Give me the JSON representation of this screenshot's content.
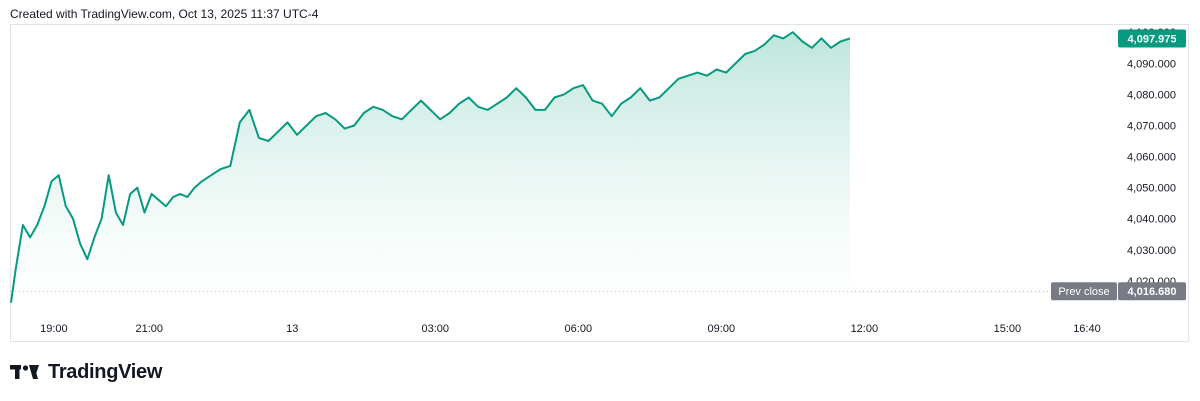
{
  "header": {
    "credit": "Created with TradingView.com, Oct 13, 2025 11:37 UTC-4"
  },
  "footer": {
    "brand": "TradingView"
  },
  "colors": {
    "line": "#089981",
    "fill_top": "#b9e4d9",
    "fill_bottom": "#ffffff",
    "last_badge": "#089981",
    "prev_badge": "#787b86",
    "prev_line": "#b2b5be"
  },
  "chart_data": {
    "type": "area",
    "ylim": [
      4010,
      4102
    ],
    "y_ticks": [
      {
        "value": 4020,
        "label": "4,020.000"
      },
      {
        "value": 4030,
        "label": "4,030.000"
      },
      {
        "value": 4040,
        "label": "4,040.000"
      },
      {
        "value": 4050,
        "label": "4,050.000"
      },
      {
        "value": 4060,
        "label": "4,060.000"
      },
      {
        "value": 4070,
        "label": "4,070.000"
      },
      {
        "value": 4080,
        "label": "4,080.000"
      },
      {
        "value": 4090,
        "label": "4,090.000"
      },
      {
        "value": 4100,
        "label": "4,100.000"
      }
    ],
    "x_ticks": [
      {
        "value": 19.0,
        "label": "19:00"
      },
      {
        "value": 21.0,
        "label": "21:00"
      },
      {
        "value": 24.0,
        "label": "13"
      },
      {
        "value": 27.0,
        "label": "03:00"
      },
      {
        "value": 30.0,
        "label": "06:00"
      },
      {
        "value": 33.0,
        "label": "09:00"
      },
      {
        "value": 36.0,
        "label": "12:00"
      },
      {
        "value": 39.0,
        "label": "15:00"
      },
      {
        "value": 40.67,
        "label": "16:40"
      }
    ],
    "xlim": [
      18.1,
      41.3
    ],
    "last_price": {
      "value": 4097.975,
      "label": "4,097.975"
    },
    "prev_close": {
      "value": 4016.68,
      "label": "4,016.680",
      "name": "Prev close"
    },
    "series": [
      {
        "x": [
          18.1,
          18.2,
          18.35,
          18.5,
          18.65,
          18.8,
          18.95,
          19.1,
          19.25,
          19.4,
          19.55,
          19.7,
          19.85,
          20.0,
          20.15,
          20.3,
          20.45,
          20.6,
          20.75,
          20.9,
          21.05,
          21.2,
          21.35,
          21.5,
          21.65,
          21.8,
          21.95,
          22.1,
          22.3,
          22.5,
          22.7,
          22.9,
          23.1,
          23.3,
          23.5,
          23.7,
          23.9,
          24.1,
          24.3,
          24.5,
          24.7,
          24.9,
          25.1,
          25.3,
          25.5,
          25.7,
          25.9,
          26.1,
          26.3,
          26.5,
          26.7,
          26.9,
          27.1,
          27.3,
          27.5,
          27.7,
          27.9,
          28.1,
          28.3,
          28.5,
          28.7,
          28.9,
          29.1,
          29.3,
          29.5,
          29.7,
          29.9,
          30.1,
          30.3,
          30.5,
          30.7,
          30.9,
          31.1,
          31.3,
          31.5,
          31.7,
          31.9,
          32.1,
          32.3,
          32.5,
          32.7,
          32.9,
          33.1,
          33.3,
          33.5,
          33.7,
          33.9,
          34.1,
          34.3,
          34.5,
          34.7,
          34.9,
          35.1,
          35.3,
          35.5,
          35.7
        ],
        "y": [
          4013,
          4024,
          4038,
          4034,
          4038,
          4044,
          4052,
          4054,
          4044,
          4040,
          4032,
          4027,
          4034,
          4040,
          4054,
          4042,
          4038,
          4048,
          4050,
          4042,
          4048,
          4046,
          4044,
          4047,
          4048,
          4047,
          4050,
          4052,
          4054,
          4056,
          4057,
          4071,
          4075,
          4066,
          4065,
          4068,
          4071,
          4067,
          4070,
          4073,
          4074,
          4072,
          4069,
          4070,
          4074,
          4076,
          4075,
          4073,
          4072,
          4075,
          4078,
          4075,
          4072,
          4074,
          4077,
          4079,
          4076,
          4075,
          4077,
          4079,
          4082,
          4079,
          4075,
          4075,
          4079,
          4080,
          4082,
          4083,
          4078,
          4077,
          4073,
          4077,
          4079,
          4082,
          4078,
          4079,
          4082,
          4085,
          4086,
          4087,
          4086,
          4088,
          4087,
          4090,
          4093,
          4094,
          4096,
          4099,
          4098,
          4100,
          4097,
          4095,
          4098,
          4095,
          4097,
          4098
        ]
      }
    ]
  }
}
